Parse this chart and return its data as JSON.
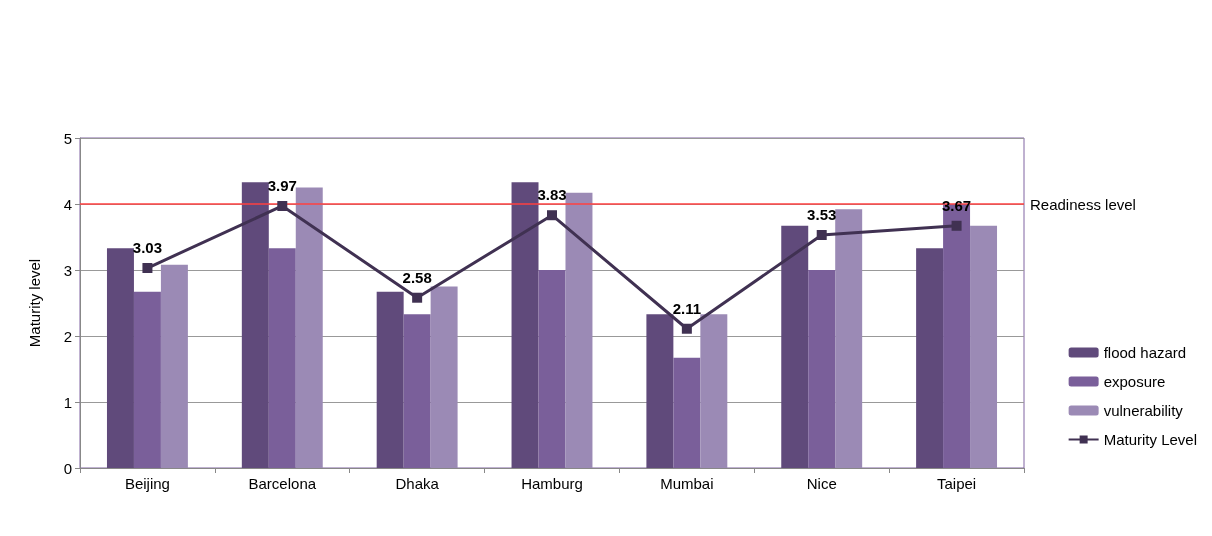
{
  "chart_data": {
    "type": "bar",
    "ylabel": "Maturity level",
    "categories": [
      "Beijing",
      "Barcelona",
      "Dhaka",
      "Hamburg",
      "Mumbai",
      "Nice",
      "Taipei"
    ],
    "series": [
      {
        "name": "flood hazard",
        "color": "#604a7b",
        "values": [
          3.33,
          4.33,
          2.67,
          4.33,
          2.33,
          3.67,
          3.33
        ]
      },
      {
        "name": "exposure",
        "color": "#7a5f9a",
        "values": [
          2.67,
          3.33,
          2.33,
          3.0,
          1.67,
          3.0,
          4.0
        ]
      },
      {
        "name": "vulnerability",
        "color": "#9b8ab5",
        "values": [
          3.08,
          4.25,
          2.75,
          4.17,
          2.33,
          3.92,
          3.67
        ]
      },
      {
        "name": "Maturity Level",
        "type": "line",
        "color": "#403152",
        "values": [
          3.03,
          3.97,
          2.58,
          3.83,
          2.11,
          3.53,
          3.67
        ],
        "value_labels": [
          "3.03",
          "3.97",
          "2.58",
          "3.83",
          "2.11",
          "3.53",
          "3.67"
        ]
      }
    ],
    "ylim": [
      0,
      5
    ],
    "yticks": [
      0,
      1,
      2,
      3,
      4,
      5
    ],
    "ref_lines": [
      {
        "axis": "y",
        "value": 4,
        "label": "Readiness level",
        "color": "#ff4040"
      }
    ],
    "grid": "y",
    "legend": "right",
    "marker": "square"
  }
}
